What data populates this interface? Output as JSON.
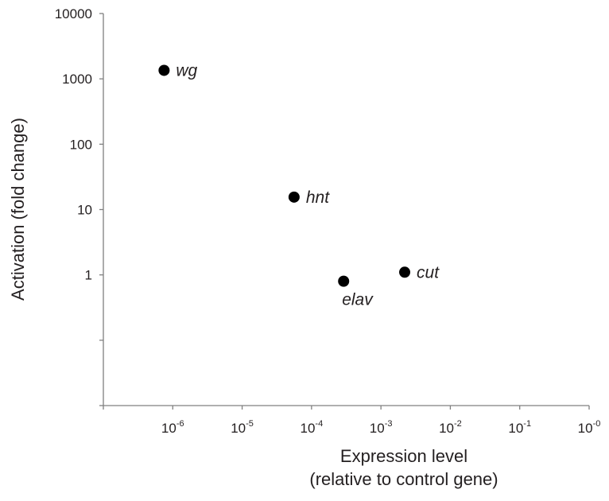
{
  "chart_data": {
    "type": "scatter",
    "title": "",
    "xlabel": [
      "Expression level",
      "(relative to control gene)"
    ],
    "ylabel": "Activation (fold change)",
    "x_scale": "log",
    "y_scale": "log",
    "xlim": [
      1e-07,
      1
    ],
    "ylim": [
      0.01,
      10000
    ],
    "grid": false,
    "legend": "none",
    "marker_color": "#000000",
    "x_ticks": [
      {
        "value": 1e-06,
        "base": "10",
        "exp": "-6"
      },
      {
        "value": 1e-05,
        "base": "10",
        "exp": "-5"
      },
      {
        "value": 0.0001,
        "base": "10",
        "exp": "-4"
      },
      {
        "value": 0.001,
        "base": "10",
        "exp": "-3"
      },
      {
        "value": 0.01,
        "base": "10",
        "exp": "-2"
      },
      {
        "value": 0.1,
        "base": "10",
        "exp": "-1"
      },
      {
        "value": 1,
        "base": "10",
        "exp": "-0"
      }
    ],
    "y_ticks": [
      {
        "value": 1,
        "label": "1"
      },
      {
        "value": 10,
        "label": "10"
      },
      {
        "value": 100,
        "label": "100"
      },
      {
        "value": 1000,
        "label": "1000"
      },
      {
        "value": 10000,
        "label": "10000"
      }
    ],
    "points": [
      {
        "label": "wg",
        "x": 7.5e-07,
        "y": 1350,
        "label_position": "right"
      },
      {
        "label": "hnt",
        "x": 5.6e-05,
        "y": 15.5,
        "label_position": "right"
      },
      {
        "label": "elav",
        "x": 0.00029,
        "y": 0.8,
        "label_position": "below"
      },
      {
        "label": "cut",
        "x": 0.0022,
        "y": 1.1,
        "label_position": "right"
      }
    ]
  }
}
